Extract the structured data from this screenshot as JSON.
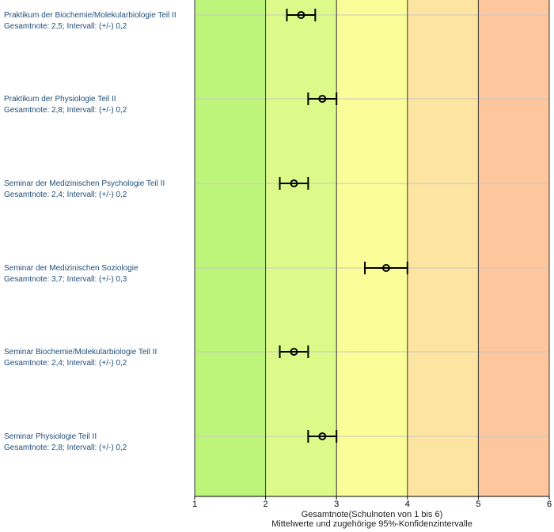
{
  "chart_data": {
    "type": "errorbar",
    "xlim": [
      1,
      6
    ],
    "x_ticks": [
      "1",
      "2",
      "3",
      "4",
      "5",
      "6"
    ],
    "xlabel": "Gesamtnote(Schulnoten von 1 bis 6)",
    "subtitle": "Mittelwerte und zugehörige 95%-Konfidenzintervalle",
    "bands": [
      {
        "from": 1,
        "to": 2,
        "color": "#bdf57a"
      },
      {
        "from": 2,
        "to": 3,
        "color": "#dcfa8a"
      },
      {
        "from": 3,
        "to": 4,
        "color": "#fbfd98"
      },
      {
        "from": 4,
        "to": 5,
        "color": "#fde4a0"
      },
      {
        "from": 5,
        "to": 6,
        "color": "#fdc69c"
      }
    ],
    "rows": [
      {
        "name": "Praktikum der Biochemie/Molekularbiologie Teil II",
        "grade_text": "Gesamtnote: 2,5;  Intervall: (+/-) 0,2",
        "value": 2.5,
        "ci": 0.2
      },
      {
        "name": "Praktikum der Physiologie Teil II",
        "grade_text": "Gesamtnote: 2,8;  Intervall: (+/-) 0,2",
        "value": 2.8,
        "ci": 0.2
      },
      {
        "name": "Seminar der Medizinischen Psychologie Teil II",
        "grade_text": "Gesamtnote: 2,4;  Intervall: (+/-) 0,2",
        "value": 2.4,
        "ci": 0.2
      },
      {
        "name": "Seminar der Medizinischen Soziologie",
        "grade_text": "Gesamtnote: 3,7;  Intervall: (+/-) 0,3",
        "value": 3.7,
        "ci": 0.3
      },
      {
        "name": "Seminar Biochemie/Molekularbiologie Teil II",
        "grade_text": "Gesamtnote: 2,4;  Intervall: (+/-) 0,2",
        "value": 2.4,
        "ci": 0.2
      },
      {
        "name": "Seminar Physiologie Teil II",
        "grade_text": "Gesamtnote: 2,8;  Intervall: (+/-) 0,2",
        "value": 2.8,
        "ci": 0.2
      }
    ]
  }
}
